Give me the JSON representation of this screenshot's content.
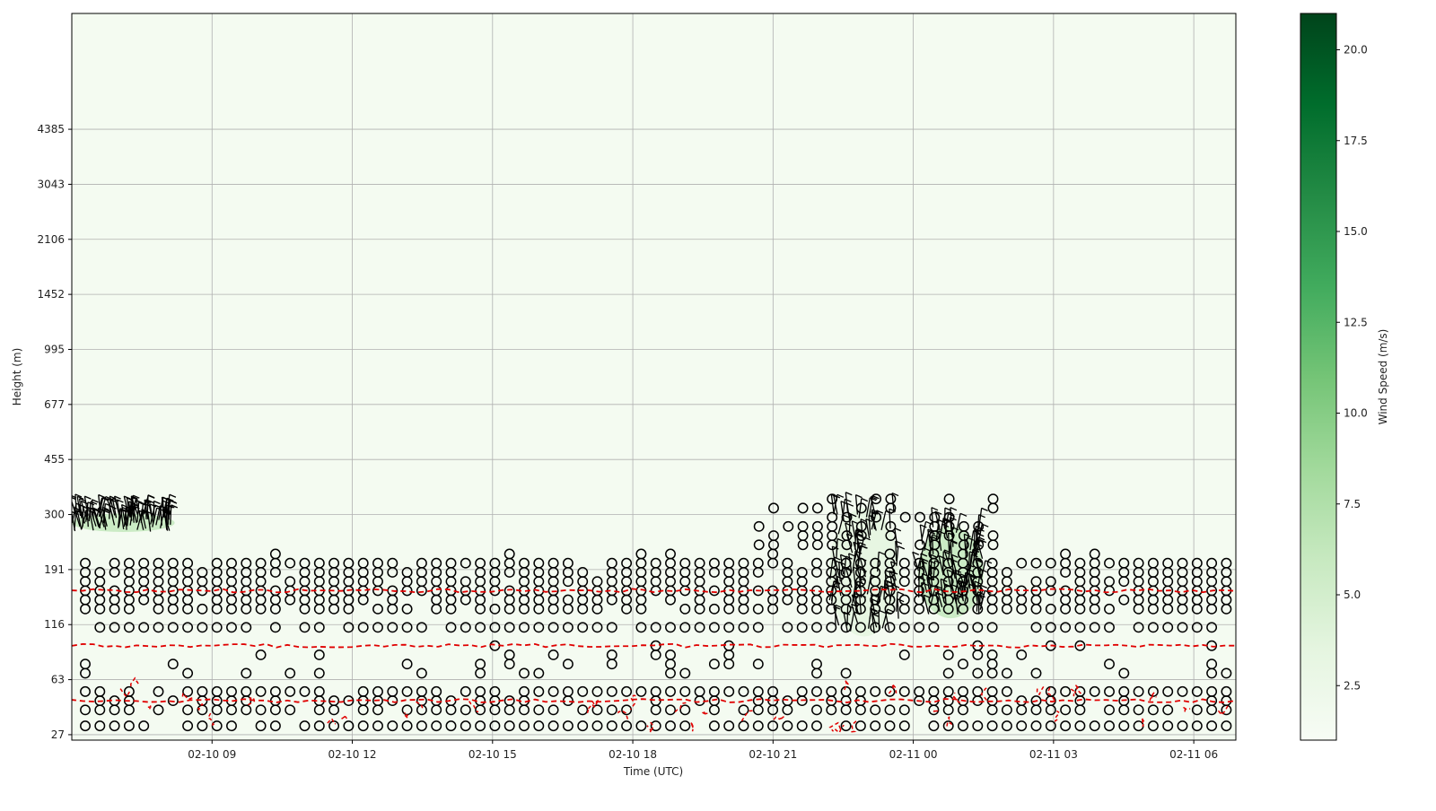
{
  "chart_data": {
    "type": "heatmap",
    "title": "",
    "xlabel": "Time (UTC)",
    "ylabel": "Height (m)",
    "colorbar_label": "Wind Speed (m/s)",
    "colormap": [
      "#f7fcf5",
      "#e5f5e0",
      "#c7e9c0",
      "#a1d99b",
      "#74c476",
      "#41ab5d",
      "#238b45",
      "#006d2c",
      "#00441b"
    ],
    "color_range": [
      1.0,
      21.0
    ],
    "colorbar_ticks": [
      {
        "v": 2.5,
        "label": "2.5"
      },
      {
        "v": 5.0,
        "label": "5.0"
      },
      {
        "v": 7.5,
        "label": "7.5"
      },
      {
        "v": 10.0,
        "label": "10.0"
      },
      {
        "v": 12.5,
        "label": "12.5"
      },
      {
        "v": 15.0,
        "label": "15.0"
      },
      {
        "v": 17.5,
        "label": "17.5"
      },
      {
        "v": 20.0,
        "label": "20.0"
      }
    ],
    "x_range_hours": [
      6.0,
      30.9
    ],
    "x_ticks": [
      {
        "h": 9,
        "label": "02-10 09"
      },
      {
        "h": 12,
        "label": "02-10 12"
      },
      {
        "h": 15,
        "label": "02-10 15"
      },
      {
        "h": 18,
        "label": "02-10 18"
      },
      {
        "h": 21,
        "label": "02-10 21"
      },
      {
        "h": 24,
        "label": "02-11 00"
      },
      {
        "h": 27,
        "label": "02-11 03"
      },
      {
        "h": 30,
        "label": "02-11 06"
      }
    ],
    "y_ticks": [
      "27",
      "63",
      "116",
      "191",
      "300",
      "455",
      "677",
      "995",
      "1452",
      "2106",
      "3043",
      "4385"
    ],
    "grid": true,
    "calm_rows": [
      {
        "level": 0.63,
        "density": 0.88
      },
      {
        "level": 1.5,
        "density": 0.78
      },
      {
        "level": 2.0,
        "density": 0.55
      },
      {
        "level": 2.5,
        "density": 0.92
      },
      {
        "level": 3.5,
        "density": 0.35
      },
      {
        "level": 4.0,
        "density": 0.22
      },
      {
        "level": 4.5,
        "density": 0.08
      },
      {
        "level": 5.0,
        "density": 0.12
      },
      {
        "level": 6.0,
        "density": 0.9
      },
      {
        "level": 7.0,
        "density": 0.88
      },
      {
        "level": 7.5,
        "density": 0.86
      },
      {
        "level": 8.0,
        "density": 0.92
      },
      {
        "level": 8.5,
        "density": 0.9
      },
      {
        "level": 9.0,
        "density": 0.9
      },
      {
        "level": 9.5,
        "density": 0.86
      },
      {
        "level": 10.0,
        "density": 0.1
      }
    ],
    "jets": [
      {
        "h_range": [
          6.0,
          8.2
        ],
        "level_range": [
          11.2,
          12.2
        ],
        "speed": 6.0
      },
      {
        "h_range": [
          22.2,
          23.7
        ],
        "level_range": [
          5.5,
          12.5
        ],
        "speed": 4.5
      },
      {
        "h_range": [
          24.1,
          25.5
        ],
        "level_range": [
          6.5,
          11.5
        ],
        "speed": 5.5
      }
    ]
  }
}
